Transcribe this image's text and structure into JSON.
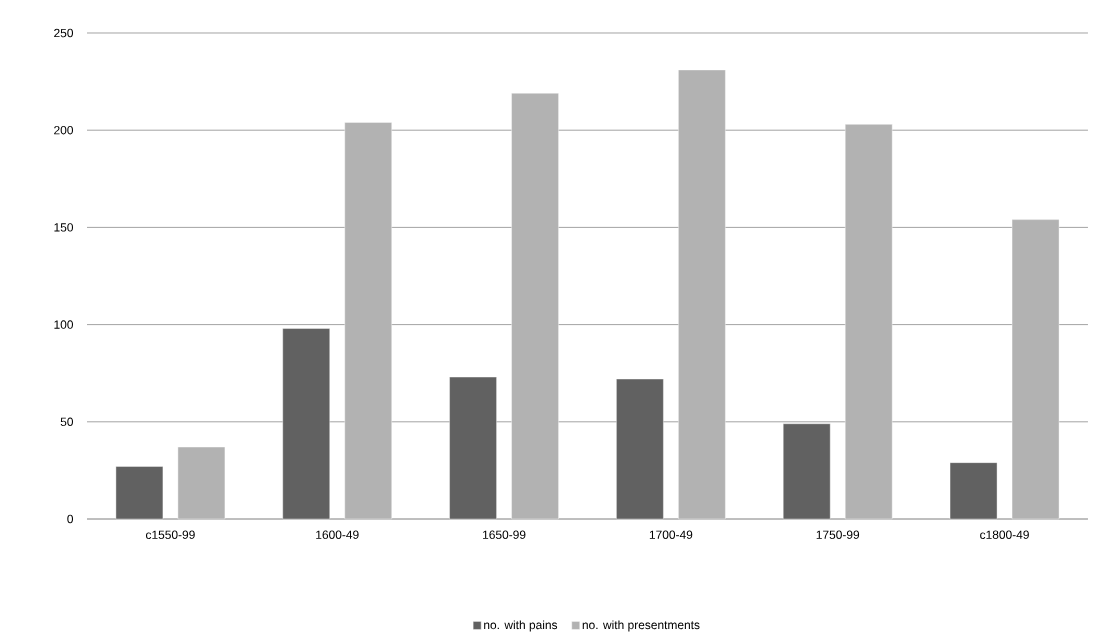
{
  "chart_data": {
    "type": "bar",
    "categories": [
      "c1550-99",
      "1600-49",
      "1650-99",
      "1700-49",
      "1750-99",
      "c1800-49"
    ],
    "series": [
      {
        "name": "no. with pains",
        "color": "#616161",
        "values": [
          27,
          98,
          73,
          72,
          49,
          29
        ]
      },
      {
        "name": "no. with presentments",
        "color": "#b2b2b2",
        "values": [
          37,
          204,
          219,
          231,
          203,
          154
        ]
      }
    ],
    "ylim": [
      0,
      250
    ],
    "yticks": [
      0,
      50,
      100,
      150,
      200,
      250
    ],
    "grid": "y",
    "legend": "bottom"
  }
}
